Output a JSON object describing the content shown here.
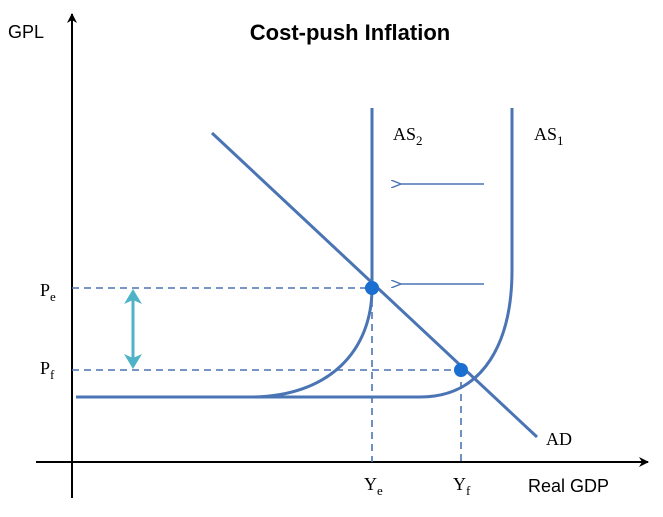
{
  "title": "Cost-push Inflation",
  "axes": {
    "y_label": "GPL",
    "x_label": "Real GDP"
  },
  "curves": {
    "as1": {
      "base": "AS",
      "sub": "1"
    },
    "as2": {
      "base": "AS",
      "sub": "2"
    },
    "ad": "AD"
  },
  "price_levels": {
    "pe": {
      "base": "P",
      "sub": "e"
    },
    "pf": {
      "base": "P",
      "sub": "f"
    }
  },
  "output_levels": {
    "ye": {
      "base": "Y",
      "sub": "e"
    },
    "yf": {
      "base": "Y",
      "sub": "f"
    }
  },
  "colors": {
    "curve": "#4a74b4",
    "equilibrium_point": "#1a6fd0",
    "change_arrow": "#4fb3c8",
    "axis": "#000000"
  }
}
